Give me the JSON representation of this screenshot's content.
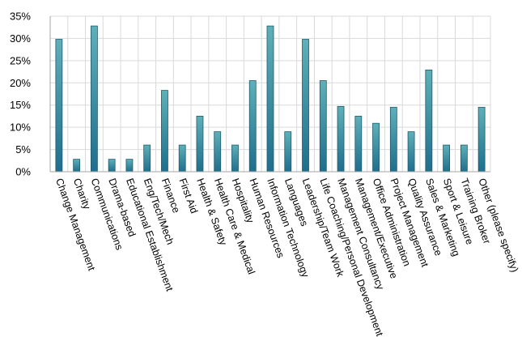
{
  "chart_data": {
    "type": "bar",
    "title": "",
    "xlabel": "",
    "ylabel": "",
    "ylim": [
      0,
      35
    ],
    "yticks": [
      0,
      5,
      10,
      15,
      20,
      25,
      30,
      35
    ],
    "ytick_labels": [
      "0%",
      "5%",
      "10%",
      "15%",
      "20%",
      "25%",
      "30%",
      "35%"
    ],
    "grid": true,
    "legend": "none",
    "colors": {
      "bar_top": "#5fb0b8",
      "bar_bottom": "#1f6e8c",
      "bar_stroke": "#1d5a6e",
      "grid": "#d9d9d9",
      "axis": "#a6a6a6"
    },
    "categories": [
      "Change Management",
      "Charity",
      "Communications",
      "Drama-based",
      "Educational Establishment",
      "Eng/Tech/Mech",
      "Finance",
      "First Aid",
      "Health & Safety",
      "Health Care & Medical",
      "Hospitality",
      "Human Resources",
      "Information Technology",
      "Languages",
      "Leadership/Team Work",
      "Life Coaching/Personal Development",
      "Management Consultancy",
      "Management/Executive",
      "Office Administration",
      "Project Management",
      "Quality Assurance",
      "Sales & Marketing",
      "Sport & Leisure",
      "Training Broker",
      "Other (please specify)"
    ],
    "values": [
      29.8,
      2.8,
      32.8,
      2.8,
      2.8,
      6.0,
      18.3,
      6.0,
      12.5,
      9.0,
      6.0,
      20.5,
      32.8,
      9.0,
      29.8,
      20.5,
      14.7,
      12.5,
      10.9,
      14.5,
      9.0,
      22.9,
      6.0,
      6.0,
      14.5
    ]
  }
}
